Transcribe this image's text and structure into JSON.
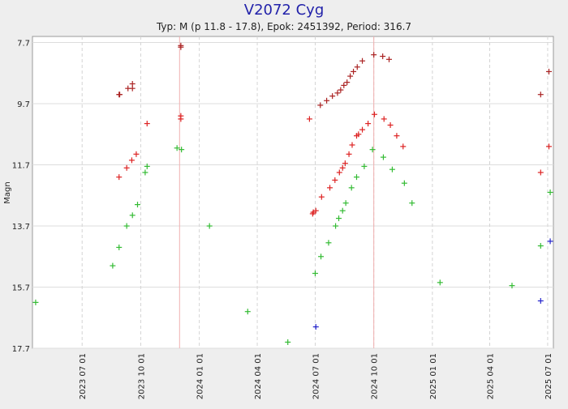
{
  "chart_data": {
    "type": "scatter",
    "title": "V2072 Cyg",
    "subtitle": "Typ: M (p 11.8 - 17.8), Epok: 2451392, Period: 316.7",
    "ylabel": "Magn",
    "xlabel": "",
    "y_inverted": true,
    "ylim": [
      17.7,
      7.5
    ],
    "xlim": [
      "2023-04-14",
      "2025-07-10"
    ],
    "y_ticks": [
      7.7,
      9.7,
      11.7,
      13.7,
      15.7,
      17.7
    ],
    "y_tick_labels": [
      "7.7",
      "9.7",
      "11.7",
      "13.7",
      "15.7",
      "17.7"
    ],
    "x_ticks": [
      "2023-07-01",
      "2023-10-01",
      "2024-01-01",
      "2024-04-01",
      "2024-07-01",
      "2024-10-01",
      "2025-01-01",
      "2025-04-01",
      "2025-07-01"
    ],
    "x_tick_labels": [
      "2023 07 01",
      "2023 10 01",
      "2024 01 01",
      "2024 04 01",
      "2024 07 01",
      "2024 10 01",
      "2025 01 01",
      "2025 04 01",
      "2025 07 01"
    ],
    "x_grid": "dashed",
    "y_grid": "solid",
    "epoch_markers": [
      "2023-12-01",
      "2024-10-01"
    ],
    "marker": "+",
    "series": [
      {
        "color": "#aa2222",
        "points": [
          {
            "x": "2023-08-28",
            "y": 9.4
          },
          {
            "x": "2023-08-29",
            "y": 9.4
          },
          {
            "x": "2023-09-11",
            "y": 9.2
          },
          {
            "x": "2023-09-18",
            "y": 9.05
          },
          {
            "x": "2023-09-18",
            "y": 9.2
          },
          {
            "x": "2023-12-03",
            "y": 7.8
          },
          {
            "x": "2023-12-03",
            "y": 7.85
          },
          {
            "x": "2024-07-09",
            "y": 9.75
          },
          {
            "x": "2024-07-19",
            "y": 9.6
          },
          {
            "x": "2024-07-28",
            "y": 9.45
          },
          {
            "x": "2024-08-05",
            "y": 9.35
          },
          {
            "x": "2024-08-10",
            "y": 9.25
          },
          {
            "x": "2024-08-15",
            "y": 9.1
          },
          {
            "x": "2024-08-20",
            "y": 9.0
          },
          {
            "x": "2024-08-25",
            "y": 8.8
          },
          {
            "x": "2024-08-30",
            "y": 8.65
          },
          {
            "x": "2024-09-05",
            "y": 8.5
          },
          {
            "x": "2024-09-13",
            "y": 8.3
          },
          {
            "x": "2024-10-01",
            "y": 8.1
          },
          {
            "x": "2024-10-15",
            "y": 8.15
          },
          {
            "x": "2024-10-25",
            "y": 8.25
          },
          {
            "x": "2025-06-20",
            "y": 9.4
          },
          {
            "x": "2025-07-03",
            "y": 8.65
          }
        ]
      },
      {
        "color": "#dd2222",
        "points": [
          {
            "x": "2023-08-28",
            "y": 12.1
          },
          {
            "x": "2023-09-09",
            "y": 11.8
          },
          {
            "x": "2023-09-17",
            "y": 11.55
          },
          {
            "x": "2023-09-24",
            "y": 11.35
          },
          {
            "x": "2023-10-11",
            "y": 10.35
          },
          {
            "x": "2023-12-03",
            "y": 10.1
          },
          {
            "x": "2023-12-03",
            "y": 10.2
          },
          {
            "x": "2024-06-22",
            "y": 10.2
          },
          {
            "x": "2024-06-27",
            "y": 13.3
          },
          {
            "x": "2024-06-28",
            "y": 13.25
          },
          {
            "x": "2024-07-02",
            "y": 13.2
          },
          {
            "x": "2024-07-11",
            "y": 12.75
          },
          {
            "x": "2024-07-24",
            "y": 12.45
          },
          {
            "x": "2024-08-01",
            "y": 12.2
          },
          {
            "x": "2024-08-08",
            "y": 11.95
          },
          {
            "x": "2024-08-13",
            "y": 11.8
          },
          {
            "x": "2024-08-17",
            "y": 11.65
          },
          {
            "x": "2024-08-23",
            "y": 11.35
          },
          {
            "x": "2024-08-28",
            "y": 11.05
          },
          {
            "x": "2024-09-04",
            "y": 10.75
          },
          {
            "x": "2024-09-07",
            "y": 10.7
          },
          {
            "x": "2024-09-13",
            "y": 10.55
          },
          {
            "x": "2024-09-22",
            "y": 10.35
          },
          {
            "x": "2024-10-02",
            "y": 10.05
          },
          {
            "x": "2024-10-17",
            "y": 10.2
          },
          {
            "x": "2024-10-27",
            "y": 10.4
          },
          {
            "x": "2024-11-06",
            "y": 10.75
          },
          {
            "x": "2024-11-16",
            "y": 11.1
          },
          {
            "x": "2025-06-20",
            "y": 11.95
          },
          {
            "x": "2025-07-03",
            "y": 11.1
          }
        ]
      },
      {
        "color": "#33bb33",
        "points": [
          {
            "x": "2023-04-19",
            "y": 16.2
          },
          {
            "x": "2023-08-18",
            "y": 15.0
          },
          {
            "x": "2023-08-28",
            "y": 14.4
          },
          {
            "x": "2023-09-09",
            "y": 13.7
          },
          {
            "x": "2023-09-18",
            "y": 13.35
          },
          {
            "x": "2023-09-26",
            "y": 13.0
          },
          {
            "x": "2023-10-08",
            "y": 11.95
          },
          {
            "x": "2023-10-11",
            "y": 11.75
          },
          {
            "x": "2023-11-27",
            "y": 11.15
          },
          {
            "x": "2023-12-04",
            "y": 11.2
          },
          {
            "x": "2024-01-17",
            "y": 13.7
          },
          {
            "x": "2024-03-17",
            "y": 16.5
          },
          {
            "x": "2024-05-19",
            "y": 17.5
          },
          {
            "x": "2024-07-01",
            "y": 15.25
          },
          {
            "x": "2024-07-10",
            "y": 14.7
          },
          {
            "x": "2024-07-22",
            "y": 14.25
          },
          {
            "x": "2024-08-02",
            "y": 13.7
          },
          {
            "x": "2024-08-07",
            "y": 13.45
          },
          {
            "x": "2024-08-13",
            "y": 13.2
          },
          {
            "x": "2024-08-18",
            "y": 12.95
          },
          {
            "x": "2024-08-27",
            "y": 12.45
          },
          {
            "x": "2024-09-04",
            "y": 12.1
          },
          {
            "x": "2024-09-16",
            "y": 11.75
          },
          {
            "x": "2024-09-29",
            "y": 11.2
          },
          {
            "x": "2024-10-16",
            "y": 11.45
          },
          {
            "x": "2024-10-30",
            "y": 11.85
          },
          {
            "x": "2024-11-18",
            "y": 12.3
          },
          {
            "x": "2024-11-30",
            "y": 12.95
          },
          {
            "x": "2025-01-13",
            "y": 15.55
          },
          {
            "x": "2025-05-06",
            "y": 15.65
          },
          {
            "x": "2025-06-20",
            "y": 14.35
          },
          {
            "x": "2025-07-05",
            "y": 12.6
          }
        ]
      },
      {
        "color": "#2222cc",
        "points": [
          {
            "x": "2024-07-02",
            "y": 17.0
          },
          {
            "x": "2025-06-20",
            "y": 16.15
          },
          {
            "x": "2025-07-05",
            "y": 14.2
          }
        ]
      }
    ]
  }
}
